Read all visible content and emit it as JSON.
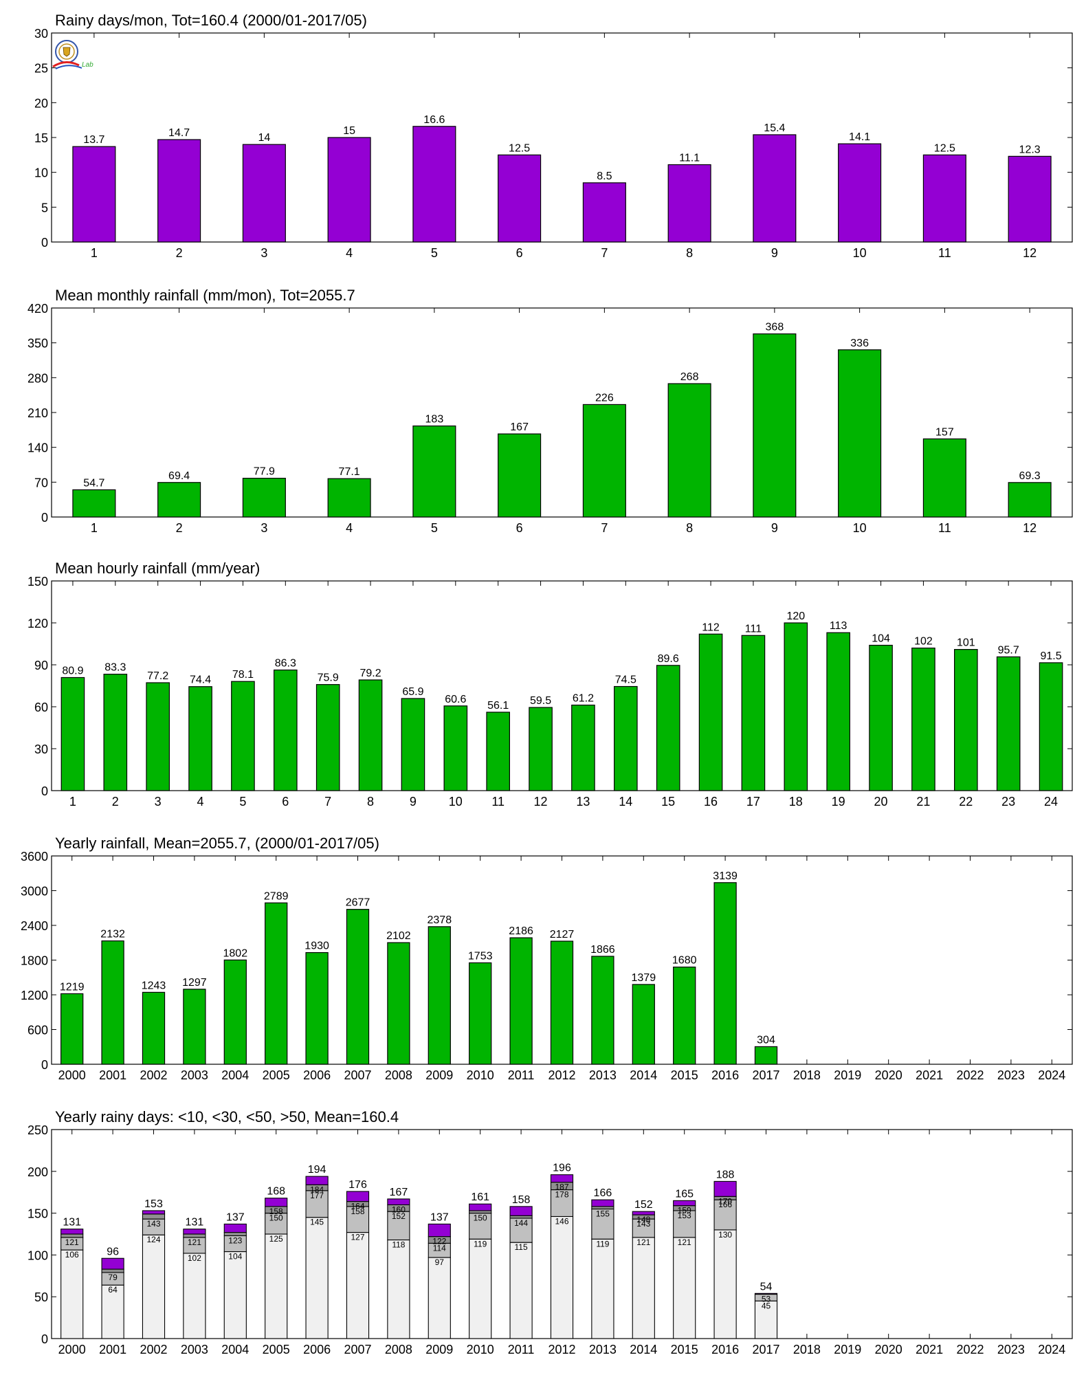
{
  "colors": {
    "purple": "#9400d3",
    "green": "#00b400",
    "white_seg": "#f0f0f0",
    "gray_seg": "#c0c0c0",
    "dark_seg": "#909090",
    "axis": "#000000"
  },
  "logo": {
    "text": "Lab",
    "emblem": "seal-emblem"
  },
  "chart_data": [
    {
      "type": "bar",
      "title": "Rainy days/mon, Tot=160.4 (2000/01-2017/05)",
      "categories": [
        "1",
        "2",
        "3",
        "4",
        "5",
        "6",
        "7",
        "8",
        "9",
        "10",
        "11",
        "12"
      ],
      "values": [
        13.7,
        14.7,
        14,
        15,
        16.6,
        12.5,
        8.5,
        11.1,
        15.4,
        14.1,
        12.5,
        12.3
      ],
      "labels": [
        "13.7",
        "14.7",
        "14",
        "15",
        "16.6",
        "12.5",
        "8.5",
        "11.1",
        "15.4",
        "14.1",
        "12.5",
        "12.3"
      ],
      "ylim": [
        0,
        30
      ],
      "yticks": [
        "0",
        "5",
        "10",
        "15",
        "20",
        "25",
        "30"
      ],
      "color": "#9400d3",
      "grid": false
    },
    {
      "type": "bar",
      "title": "Mean monthly rainfall (mm/mon), Tot=2055.7",
      "categories": [
        "1",
        "2",
        "3",
        "4",
        "5",
        "6",
        "7",
        "8",
        "9",
        "10",
        "11",
        "12"
      ],
      "values": [
        54.7,
        69.4,
        77.9,
        77.1,
        183,
        167,
        226,
        268,
        368,
        336,
        157,
        69.3
      ],
      "labels": [
        "54.7",
        "69.4",
        "77.9",
        "77.1",
        "183",
        "167",
        "226",
        "268",
        "368",
        "336",
        "157",
        "69.3"
      ],
      "ylim": [
        0,
        420
      ],
      "yticks": [
        "0",
        "70",
        "140",
        "210",
        "280",
        "350",
        "420"
      ],
      "color": "#00b400",
      "grid": false
    },
    {
      "type": "bar",
      "title": "Mean hourly rainfall (mm/year)",
      "categories": [
        "1",
        "2",
        "3",
        "4",
        "5",
        "6",
        "7",
        "8",
        "9",
        "10",
        "11",
        "12",
        "13",
        "14",
        "15",
        "16",
        "17",
        "18",
        "19",
        "20",
        "21",
        "22",
        "23",
        "24"
      ],
      "values": [
        80.9,
        83.3,
        77.2,
        74.4,
        78.1,
        86.3,
        75.9,
        79.2,
        65.9,
        60.6,
        56.1,
        59.5,
        61.2,
        74.5,
        89.6,
        112,
        111,
        120,
        113,
        104,
        102,
        101,
        95.7,
        91.5
      ],
      "labels": [
        "80.9",
        "83.3",
        "77.2",
        "74.4",
        "78.1",
        "86.3",
        "75.9",
        "79.2",
        "65.9",
        "60.6",
        "56.1",
        "59.5",
        "61.2",
        "74.5",
        "89.6",
        "112",
        "111",
        "120",
        "113",
        "104",
        "102",
        "101",
        "95.7",
        "91.5"
      ],
      "ylim": [
        0,
        150
      ],
      "yticks": [
        "0",
        "30",
        "60",
        "90",
        "120",
        "150"
      ],
      "color": "#00b400",
      "grid": false
    },
    {
      "type": "bar",
      "title": "Yearly rainfall, Mean=2055.7, (2000/01-2017/05)",
      "categories": [
        "2000",
        "2001",
        "2002",
        "2003",
        "2004",
        "2005",
        "2006",
        "2007",
        "2008",
        "2009",
        "2010",
        "2011",
        "2012",
        "2013",
        "2014",
        "2015",
        "2016",
        "2017",
        "2018",
        "2019",
        "2020",
        "2021",
        "2022",
        "2023",
        "2024"
      ],
      "values": [
        1219,
        2132,
        1243,
        1297,
        1802,
        2789,
        1930,
        2677,
        2102,
        2378,
        1753,
        2186,
        2127,
        1866,
        1379,
        1680,
        3139,
        304,
        null,
        null,
        null,
        null,
        null,
        null,
        null
      ],
      "labels": [
        "1219",
        "2132",
        "1243",
        "1297",
        "1802",
        "2789",
        "1930",
        "2677",
        "2102",
        "2378",
        "1753",
        "2186",
        "2127",
        "1866",
        "1379",
        "1680",
        "3139",
        "304",
        "",
        "",
        "",
        "",
        "",
        "",
        ""
      ],
      "ylim": [
        0,
        3600
      ],
      "yticks": [
        "0",
        "600",
        "1200",
        "1800",
        "2400",
        "3000",
        "3600"
      ],
      "color": "#00b400",
      "grid": false
    },
    {
      "type": "bar",
      "stacked": true,
      "title": "Yearly rainy days: <10, <30, <50, >50, Mean=160.4",
      "categories": [
        "2000",
        "2001",
        "2002",
        "2003",
        "2004",
        "2005",
        "2006",
        "2007",
        "2008",
        "2009",
        "2010",
        "2011",
        "2012",
        "2013",
        "2014",
        "2015",
        "2016",
        "2017",
        "2018",
        "2019",
        "2020",
        "2021",
        "2022",
        "2023",
        "2024"
      ],
      "lt10": [
        106,
        64,
        124,
        102,
        104,
        125,
        145,
        127,
        118,
        97,
        119,
        115,
        146,
        119,
        121,
        121,
        130,
        45,
        null,
        null,
        null,
        null,
        null,
        null,
        null
      ],
      "lt30": [
        121,
        79,
        143,
        121,
        123,
        150,
        177,
        158,
        152,
        114,
        150,
        144,
        178,
        155,
        143,
        153,
        166,
        53,
        null,
        null,
        null,
        null,
        null,
        null,
        null
      ],
      "lt50": [
        125,
        83,
        149,
        125,
        127,
        158,
        184,
        164,
        160,
        122,
        153,
        147,
        187,
        158,
        148,
        159,
        170,
        53,
        null,
        null,
        null,
        null,
        null,
        null,
        null
      ],
      "totals": [
        131,
        96,
        153,
        131,
        137,
        168,
        194,
        176,
        167,
        137,
        161,
        158,
        196,
        166,
        152,
        165,
        188,
        54,
        null,
        null,
        null,
        null,
        null,
        null,
        null
      ],
      "labels_lt10": [
        "106",
        "64",
        "124",
        "102",
        "104",
        "125",
        "145",
        "127",
        "118",
        "97",
        "119",
        "115",
        "146",
        "119",
        "121",
        "121",
        "130",
        "45",
        "",
        "",
        "",
        "",
        "",
        "",
        ""
      ],
      "labels_lt30": [
        "121",
        "79",
        "143",
        "121",
        "123",
        "150",
        "177",
        "158",
        "152",
        "114",
        "150",
        "144",
        "178",
        "155",
        "143",
        "153",
        "166",
        "53",
        "",
        "",
        "",
        "",
        "",
        "",
        ""
      ],
      "labels_lt50": [
        "",
        "",
        "",
        "",
        "",
        "158",
        "184",
        "164",
        "160",
        "122",
        "",
        "",
        "187",
        "",
        "148",
        "159",
        "170",
        "",
        "",
        "",
        "",
        "",
        "",
        "",
        ""
      ],
      "labels_total": [
        "131",
        "96",
        "153",
        "131",
        "137",
        "168",
        "194",
        "176",
        "167",
        "137",
        "161",
        "158",
        "196",
        "166",
        "152",
        "165",
        "188",
        "54",
        "",
        "",
        "",
        "",
        "",
        "",
        ""
      ],
      "ylim": [
        0,
        250
      ],
      "yticks": [
        "0",
        "50",
        "100",
        "150",
        "200",
        "250"
      ],
      "colors": [
        "#f0f0f0",
        "#c0c0c0",
        "#909090",
        "#9400d3"
      ],
      "grid": false
    }
  ]
}
